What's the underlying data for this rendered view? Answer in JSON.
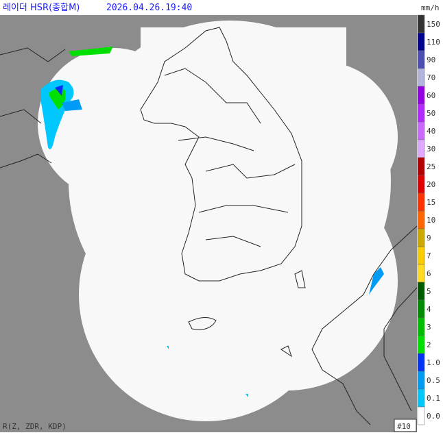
{
  "header": {
    "title": "레이더 HSR(종합M)",
    "timestamp": "2026.04.26.19:40",
    "unit": "mm/h"
  },
  "legend": {
    "items": [
      {
        "label": "150",
        "color": "#333333"
      },
      {
        "label": "110",
        "color": "#000390"
      },
      {
        "label": "90",
        "color": "#4c4eb1"
      },
      {
        "label": "70",
        "color": "#b3b4de"
      },
      {
        "label": "60",
        "color": "#9300e4"
      },
      {
        "label": "50",
        "color": "#b329ff"
      },
      {
        "label": "40",
        "color": "#c969ff"
      },
      {
        "label": "30",
        "color": "#e0a9ff"
      },
      {
        "label": "25",
        "color": "#b40000"
      },
      {
        "label": "20",
        "color": "#e00000"
      },
      {
        "label": "15",
        "color": "#ff3200"
      },
      {
        "label": "10",
        "color": "#ff6600"
      },
      {
        "label": "9",
        "color": "#ccaa00"
      },
      {
        "label": "7",
        "color": "#f9cd00"
      },
      {
        "label": "6",
        "color": "#ffdc1f"
      },
      {
        "label": "5",
        "color": "#005a00"
      },
      {
        "label": "4",
        "color": "#008c00"
      },
      {
        "label": "3",
        "color": "#00be00"
      },
      {
        "label": "2",
        "color": "#00e000"
      },
      {
        "label": "1.0",
        "color": "#0033f5"
      },
      {
        "label": "0.5",
        "color": "#009bf5"
      },
      {
        "label": "0.1",
        "color": "#00c8ff"
      },
      {
        "label": "0.0",
        "color": "#ffffff"
      }
    ]
  },
  "footer": {
    "variables": "R(Z, ZDR, KDP)",
    "frame": "#10"
  }
}
